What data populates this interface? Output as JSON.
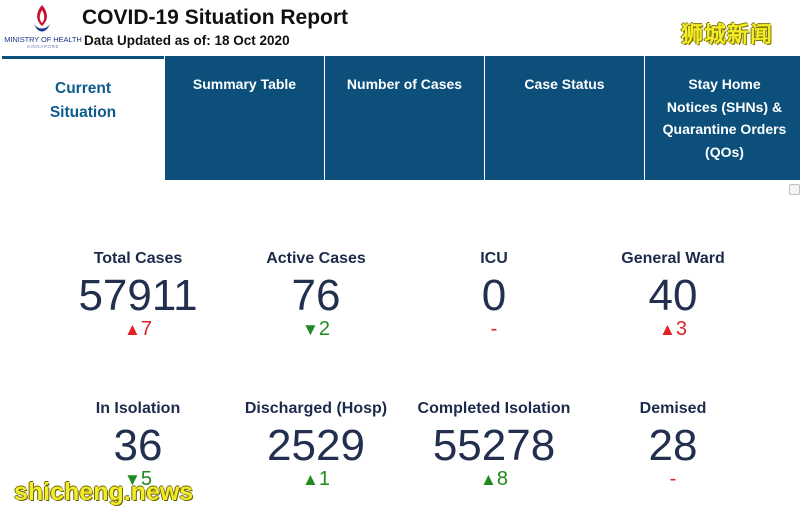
{
  "header": {
    "logo_text": "MINISTRY OF HEALTH",
    "logo_subtext": "SINGAPORE",
    "title": "COVID-19 Situation Report",
    "updated": "Data Updated as of: 18 Oct 2020",
    "watermark_top": "狮城新闻"
  },
  "tabs": [
    {
      "label": "Current Situation",
      "active": true
    },
    {
      "label": "Summary Table",
      "active": false
    },
    {
      "label": "Number of Cases",
      "active": false
    },
    {
      "label": "Case Status",
      "active": false
    },
    {
      "label": "Stay Home Notices (SHNs) & Quarantine Orders (QOs)",
      "active": false
    }
  ],
  "stats": [
    {
      "label": "Total Cases",
      "value": "57911",
      "delta": "7",
      "direction": "up"
    },
    {
      "label": "Active Cases",
      "value": "76",
      "delta": "2",
      "direction": "down"
    },
    {
      "label": "ICU",
      "value": "0",
      "delta": "-",
      "direction": "none"
    },
    {
      "label": "General Ward",
      "value": "40",
      "delta": "3",
      "direction": "up"
    },
    {
      "label": "In Isolation",
      "value": "36",
      "delta": "5",
      "direction": "down"
    },
    {
      "label": "Discharged (Hosp)",
      "value": "2529",
      "delta": "1",
      "direction": "up_green"
    },
    {
      "label": "Completed Isolation",
      "value": "55278",
      "delta": "8",
      "direction": "up_green"
    },
    {
      "label": "Demised",
      "value": "28",
      "delta": "-",
      "direction": "none"
    }
  ],
  "watermark_bottom": "shicheng.news",
  "colors": {
    "tab_bg": "#0b4f7a",
    "up_red": "#e02222",
    "down_green": "#1f8a1f",
    "value_text": "#222f4f"
  }
}
